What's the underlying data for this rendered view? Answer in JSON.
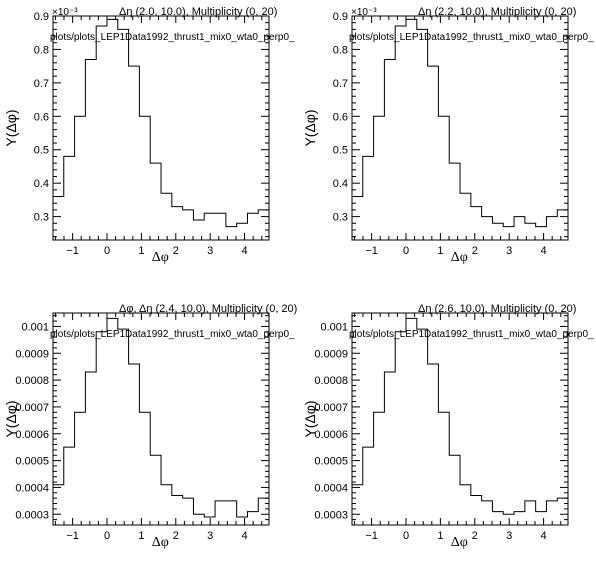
{
  "chart_data": [
    {
      "type": "histogram",
      "title": "Δη (2.0, 10.0), Multiplicity (0, 20)",
      "path_label": "plots/plots_LEP1Data1992_thrust1_mix0_wta0_perp0_",
      "xlabel": "Δφ",
      "ylabel": "Y(Δφ)",
      "multiplier": "×10⁻³",
      "xlim": [
        -1.57,
        4.71
      ],
      "ylim": [
        0.23,
        0.9
      ],
      "xticks": [
        "−1",
        "0",
        "1",
        "2",
        "3",
        "4"
      ],
      "xtick_values": [
        -1,
        0,
        1,
        2,
        3,
        4
      ],
      "yticks": [
        "0.3",
        "0.4",
        "0.5",
        "0.6",
        "0.7",
        "0.8",
        "0.9"
      ],
      "ytick_values": [
        0.3,
        0.4,
        0.5,
        0.6,
        0.7,
        0.8,
        0.9
      ],
      "bin_edges": [
        -1.57,
        -1.257,
        -0.942,
        -0.628,
        -0.314,
        0,
        0.314,
        0.628,
        0.942,
        1.257,
        1.571,
        1.885,
        2.199,
        2.513,
        2.827,
        3.142,
        3.456,
        3.77,
        4.084,
        4.398,
        4.71
      ],
      "values": [
        0.36,
        0.48,
        0.6,
        0.77,
        0.87,
        0.89,
        0.86,
        0.75,
        0.6,
        0.46,
        0.37,
        0.33,
        0.32,
        0.29,
        0.31,
        0.31,
        0.27,
        0.28,
        0.31,
        0.32
      ]
    },
    {
      "type": "histogram",
      "title": "Δη (2.2, 10.0), Multiplicity (0, 20)",
      "path_label": "plots/plots_LEP1Data1992_thrust1_mix0_wta0_perp0_",
      "xlabel": "Δφ",
      "ylabel": "Y(Δφ)",
      "multiplier": "×10⁻³",
      "xlim": [
        -1.57,
        4.71
      ],
      "ylim": [
        0.23,
        0.9
      ],
      "xticks": [
        "−1",
        "0",
        "1",
        "2",
        "3",
        "4"
      ],
      "xtick_values": [
        -1,
        0,
        1,
        2,
        3,
        4
      ],
      "yticks": [
        "0.3",
        "0.4",
        "0.5",
        "0.6",
        "0.7",
        "0.8",
        "0.9"
      ],
      "ytick_values": [
        0.3,
        0.4,
        0.5,
        0.6,
        0.7,
        0.8,
        0.9
      ],
      "bin_edges": [
        -1.57,
        -1.257,
        -0.942,
        -0.628,
        -0.314,
        0,
        0.314,
        0.628,
        0.942,
        1.257,
        1.571,
        1.885,
        2.199,
        2.513,
        2.827,
        3.142,
        3.456,
        3.77,
        4.084,
        4.398,
        4.71
      ],
      "values": [
        0.36,
        0.48,
        0.6,
        0.77,
        0.87,
        0.89,
        0.86,
        0.75,
        0.6,
        0.46,
        0.37,
        0.33,
        0.3,
        0.28,
        0.27,
        0.3,
        0.28,
        0.27,
        0.3,
        0.32
      ]
    },
    {
      "type": "histogram",
      "title": "Δφ, Δη (2.4, 10.0), Multiplicity (0, 20)",
      "path_label": "plots/plots_LEP1Data1992_thrust1_mix0_wta0_perp0_",
      "xlabel": "Δφ",
      "ylabel": "Y(Δφ)",
      "multiplier": "",
      "xlim": [
        -1.57,
        4.71
      ],
      "ylim": [
        0.00026,
        0.00105
      ],
      "xticks": [
        "−1",
        "0",
        "1",
        "2",
        "3",
        "4"
      ],
      "xtick_values": [
        -1,
        0,
        1,
        2,
        3,
        4
      ],
      "yticks": [
        "0.0003",
        "0.0004",
        "0.0005",
        "0.0006",
        "0.0007",
        "0.0008",
        "0.0009",
        "0.001"
      ],
      "ytick_values": [
        0.0003,
        0.0004,
        0.0005,
        0.0006,
        0.0007,
        0.0008,
        0.0009,
        0.001
      ],
      "bin_edges": [
        -1.57,
        -1.257,
        -0.942,
        -0.628,
        -0.314,
        0,
        0.314,
        0.628,
        0.942,
        1.257,
        1.571,
        1.885,
        2.199,
        2.513,
        2.827,
        3.142,
        3.456,
        3.77,
        4.084,
        4.398,
        4.71
      ],
      "values": [
        0.00041,
        0.00055,
        0.00068,
        0.00083,
        0.00098,
        0.00103,
        0.00099,
        0.00086,
        0.00068,
        0.00052,
        0.00041,
        0.00037,
        0.00036,
        0.0003,
        0.00029,
        0.00035,
        0.00035,
        0.00029,
        0.00031,
        0.00036
      ]
    },
    {
      "type": "histogram",
      "title": "Δη (2.6, 10.0), Multiplicity (0, 20)",
      "path_label": "plots/plots_LEP1Data1992_thrust1_mix0_wta0_perp0_",
      "xlabel": "Δφ",
      "ylabel": "Y(Δφ)",
      "multiplier": "",
      "xlim": [
        -1.57,
        4.71
      ],
      "ylim": [
        0.00026,
        0.00105
      ],
      "xticks": [
        "−1",
        "0",
        "1",
        "2",
        "3",
        "4"
      ],
      "xtick_values": [
        -1,
        0,
        1,
        2,
        3,
        4
      ],
      "yticks": [
        "0.0003",
        "0.0004",
        "0.0005",
        "0.0006",
        "0.0007",
        "0.0008",
        "0.0009",
        "0.001"
      ],
      "ytick_values": [
        0.0003,
        0.0004,
        0.0005,
        0.0006,
        0.0007,
        0.0008,
        0.0009,
        0.001
      ],
      "bin_edges": [
        -1.57,
        -1.257,
        -0.942,
        -0.628,
        -0.314,
        0,
        0.314,
        0.628,
        0.942,
        1.257,
        1.571,
        1.885,
        2.199,
        2.513,
        2.827,
        3.142,
        3.456,
        3.77,
        4.084,
        4.398,
        4.71
      ],
      "values": [
        0.00041,
        0.00055,
        0.00068,
        0.00083,
        0.00098,
        0.00103,
        0.00099,
        0.00086,
        0.00068,
        0.00052,
        0.00041,
        0.00037,
        0.00035,
        0.00031,
        0.0003,
        0.00031,
        0.00035,
        0.00031,
        0.00035,
        0.00036
      ]
    }
  ]
}
